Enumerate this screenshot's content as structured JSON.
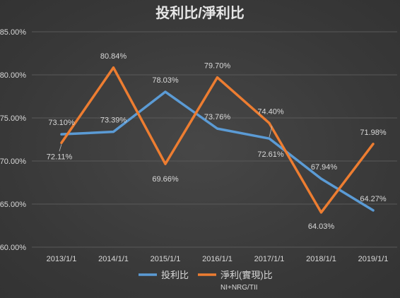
{
  "colors": {
    "background": "#3b3b3b",
    "grid": "#595959",
    "text": "#d9d9d9",
    "series_1": "#5b9bd5",
    "series_2": "#ed7d31"
  },
  "chart_data": {
    "type": "line",
    "title": "投利比/淨利比",
    "xlabel": "",
    "ylabel": "",
    "x": [
      "2013/1/1",
      "2014/1/1",
      "2015/1/1",
      "2016/1/1",
      "2017/1/1",
      "2018/1/1",
      "2019/1/1"
    ],
    "y_ticks": [
      "60.00%",
      "65.00%",
      "70.00%",
      "75.00%",
      "80.00%",
      "85.00%"
    ],
    "ylim": [
      60,
      85
    ],
    "grid": true,
    "legend_position": "bottom",
    "series": [
      {
        "name": "投利比",
        "color": "#5b9bd5",
        "values": [
          73.1,
          73.39,
          78.03,
          73.76,
          72.61,
          67.94,
          64.27
        ],
        "labels": [
          "73.10%",
          "73.39%",
          "78.03%",
          "73.76%",
          "72.61%",
          "67.94%",
          "64.27%"
        ]
      },
      {
        "name": "淨利(實現)比",
        "subtitle": "NI+NRG/TII",
        "color": "#ed7d31",
        "values": [
          72.11,
          80.84,
          69.66,
          79.7,
          74.4,
          64.03,
          71.98
        ],
        "labels": [
          "72.11%",
          "80.84%",
          "69.66%",
          "79.70%",
          "74.40%",
          "64.03%",
          "71.98%"
        ]
      }
    ]
  }
}
